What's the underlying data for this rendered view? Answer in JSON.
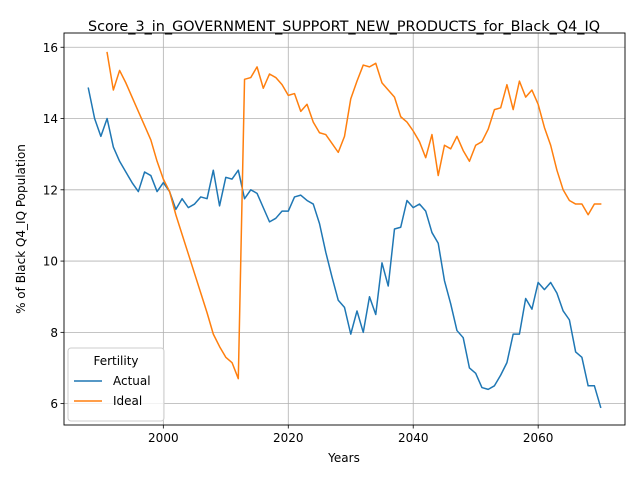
{
  "chart_data": {
    "type": "line",
    "title": "Score_3_in_GOVERNMENT_SUPPORT_NEW_PRODUCTS_for_Black_Q4_IQ",
    "xlabel": "Years",
    "ylabel": "% of Black Q4_IQ Population",
    "xlim": [
      1984.1,
      2073.9
    ],
    "ylim": [
      5.4,
      16.4
    ],
    "xticks": [
      2000,
      2020,
      2040,
      2060
    ],
    "yticks": [
      6,
      8,
      10,
      12,
      14,
      16
    ],
    "grid": true,
    "legend": {
      "title": "Fertility",
      "position": "lower-left"
    },
    "series": [
      {
        "name": "Actual",
        "color": "#1f77b4",
        "x": [
          1988,
          1989,
          1990,
          1991,
          1992,
          1993,
          1994,
          1995,
          1996,
          1997,
          1998,
          1999,
          2000,
          2001,
          2002,
          2003,
          2004,
          2005,
          2006,
          2007,
          2008,
          2009,
          2010,
          2011,
          2012,
          2013,
          2014,
          2015,
          2016,
          2017,
          2018,
          2019,
          2020,
          2021,
          2022,
          2023,
          2024,
          2025,
          2026,
          2027,
          2028,
          2029,
          2030,
          2031,
          2032,
          2033,
          2034,
          2035,
          2036,
          2037,
          2038,
          2039,
          2040,
          2041,
          2042,
          2043,
          2044,
          2045,
          2046,
          2047,
          2048,
          2049,
          2050,
          2051,
          2052,
          2053,
          2054,
          2055,
          2056,
          2057,
          2058,
          2059,
          2060,
          2061,
          2062,
          2063,
          2064,
          2065,
          2066,
          2067,
          2068,
          2069,
          2070
        ],
        "values": [
          14.85,
          14.0,
          13.5,
          14.0,
          13.2,
          12.8,
          12.5,
          12.2,
          11.95,
          12.5,
          12.4,
          11.95,
          12.2,
          11.95,
          11.45,
          11.75,
          11.5,
          11.6,
          11.8,
          11.75,
          12.55,
          11.55,
          12.35,
          12.3,
          12.55,
          11.75,
          12.0,
          11.9,
          11.5,
          11.1,
          11.2,
          11.4,
          11.4,
          11.8,
          11.85,
          11.7,
          11.6,
          11.05,
          10.25,
          9.55,
          8.9,
          8.7,
          7.95,
          8.6,
          8.0,
          9.0,
          8.5,
          9.95,
          9.3,
          10.9,
          10.95,
          11.7,
          11.5,
          11.6,
          11.4,
          10.8,
          10.5,
          9.45,
          8.8,
          8.05,
          7.85,
          7.0,
          6.85,
          6.45,
          6.4,
          6.5,
          6.8,
          7.15,
          7.95,
          7.95,
          8.95,
          8.65,
          9.4,
          9.2,
          9.4,
          9.1,
          8.6,
          8.35,
          7.45,
          7.3,
          6.5,
          6.5,
          5.9
        ]
      },
      {
        "name": "Ideal",
        "color": "#ff7f0e",
        "x": [
          1991,
          1992,
          1993,
          1994,
          1995,
          1996,
          1997,
          1998,
          1999,
          2000,
          2001,
          2002,
          2003,
          2004,
          2005,
          2006,
          2007,
          2008,
          2009,
          2010,
          2011,
          2012,
          2013,
          2014,
          2015,
          2016,
          2017,
          2018,
          2019,
          2020,
          2021,
          2022,
          2023,
          2024,
          2025,
          2026,
          2027,
          2028,
          2029,
          2030,
          2031,
          2032,
          2033,
          2034,
          2035,
          2036,
          2037,
          2038,
          2039,
          2040,
          2041,
          2042,
          2043,
          2044,
          2045,
          2046,
          2047,
          2048,
          2049,
          2050,
          2051,
          2052,
          2053,
          2054,
          2055,
          2056,
          2057,
          2058,
          2059,
          2060,
          2061,
          2062,
          2063,
          2064,
          2065,
          2066,
          2067,
          2068,
          2069,
          2070
        ],
        "values": [
          15.85,
          14.8,
          15.35,
          15.0,
          14.6,
          14.2,
          13.8,
          13.4,
          12.8,
          12.3,
          11.95,
          11.3,
          10.75,
          10.2,
          9.65,
          9.1,
          8.55,
          7.95,
          7.6,
          7.3,
          7.15,
          6.7,
          15.1,
          15.15,
          15.45,
          14.85,
          15.25,
          15.15,
          14.95,
          14.65,
          14.7,
          14.2,
          14.4,
          13.9,
          13.6,
          13.55,
          13.3,
          13.05,
          13.5,
          14.55,
          15.05,
          15.5,
          15.45,
          15.55,
          15.0,
          14.8,
          14.6,
          14.05,
          13.9,
          13.65,
          13.35,
          12.9,
          13.55,
          12.4,
          13.25,
          13.15,
          13.5,
          13.1,
          12.8,
          13.25,
          13.35,
          13.7,
          14.25,
          14.3,
          14.95,
          14.25,
          15.05,
          14.6,
          14.8,
          14.4,
          13.75,
          13.25,
          12.55,
          12.0,
          11.7,
          11.6,
          11.6,
          11.3,
          11.6,
          11.6
        ]
      }
    ]
  }
}
